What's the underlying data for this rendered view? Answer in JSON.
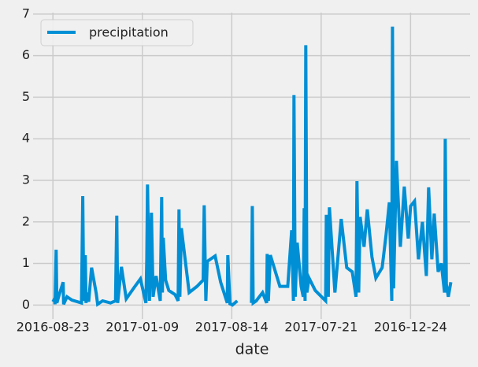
{
  "chart_data": {
    "type": "line",
    "x_label": "date",
    "x": [
      0,
      9,
      12,
      18,
      22,
      35,
      57,
      60,
      79,
      106,
      160,
      167,
      172,
      181,
      185,
      189,
      200,
      216,
      242,
      250,
      278,
      322,
      350,
      357,
      362,
      383,
      410,
      454,
      489,
      520,
      525,
      529,
      540,
      551,
      560,
      577,
      600,
      608,
      612,
      617,
      630,
      648,
      683,
      700,
      705,
      710,
      718,
      762,
      806,
      840,
      846,
      855,
      863,
      907,
      938,
      975,
      978,
      990,
      1004,
      1031,
      1048,
      1110,
      1115,
      1120,
      1137,
      1172,
      1195,
      1198,
      1205,
      1216,
      1269,
      1313,
      1335,
      1345,
      1348,
      1355,
      1366,
      1388,
      1400,
      1405,
      1410,
      1414,
      1420,
      1432,
      1467,
      1502,
      1525,
      1529,
      1540,
      1546,
      1577,
      1612,
      1643,
      1674,
      1695,
      1700,
      1710,
      1718,
      1740,
      1758,
      1784,
      1806,
      1841,
      1863,
      1881,
      1895,
      1899,
      1905,
      1921,
      1943,
      1965,
      1987,
      2000,
      2022,
      2044,
      2066,
      2088,
      2101,
      2119,
      2132,
      2154,
      2172,
      2190,
      2194,
      2200,
      2211,
      2225
    ],
    "series": [
      {
        "name": "precipitation",
        "color": "#008fd5",
        "values": [
          0.08,
          0.15,
          0.02,
          1.33,
          0.05,
          0.25,
          0.55,
          0.02,
          0.2,
          0.12,
          0.05,
          2.62,
          0.1,
          1.2,
          0.05,
          0.3,
          0.08,
          0.9,
          0.28,
          0.02,
          0.1,
          0.05,
          0.1,
          2.15,
          0.05,
          0.92,
          0.15,
          0.42,
          0.63,
          0.05,
          1.1,
          2.9,
          0.1,
          2.22,
          0.2,
          0.7,
          0.1,
          2.6,
          0.3,
          1.62,
          0.6,
          0.35,
          0.25,
          0.1,
          2.3,
          0.2,
          1.85,
          0.3,
          0.45,
          0.6,
          2.4,
          0.1,
          1.05,
          1.18,
          0.55,
          0.05,
          1.2,
          0.03,
          0.0,
          0.1,
          null,
          0.05,
          2.38,
          0.05,
          0.1,
          0.3,
          0.05,
          1.23,
          0.1,
          1.2,
          0.45,
          0.45,
          1.8,
          0.1,
          5.05,
          0.2,
          1.5,
          0.45,
          0.2,
          2.33,
          0.1,
          6.25,
          0.3,
          0.65,
          0.35,
          0.2,
          0.1,
          2.17,
          0.2,
          2.35,
          0.3,
          2.07,
          0.9,
          0.8,
          0.2,
          2.98,
          0.3,
          2.12,
          1.4,
          2.3,
          1.16,
          0.65,
          0.9,
          1.7,
          2.47,
          0.1,
          6.7,
          0.4,
          3.47,
          1.4,
          2.85,
          1.6,
          2.38,
          2.5,
          1.1,
          2.0,
          0.7,
          2.83,
          1.1,
          2.2,
          0.8,
          1.0,
          0.3,
          4.0,
          0.5,
          0.2,
          0.55
        ]
      }
    ],
    "xlim": [
      -111,
      2333
    ],
    "xticks": [
      {
        "value": 0,
        "label": "2016-08-23"
      },
      {
        "value": 500,
        "label": "2017-01-09"
      },
      {
        "value": 1000,
        "label": "2017-08-14"
      },
      {
        "value": 1500,
        "label": "2017-07-21"
      },
      {
        "value": 2000,
        "label": "2016-12-24"
      }
    ],
    "ylim": [
      -0.335,
      7.035
    ],
    "yticks": [
      0,
      1,
      2,
      3,
      4,
      5,
      6,
      7
    ],
    "grid": true,
    "legend": "upper left"
  }
}
